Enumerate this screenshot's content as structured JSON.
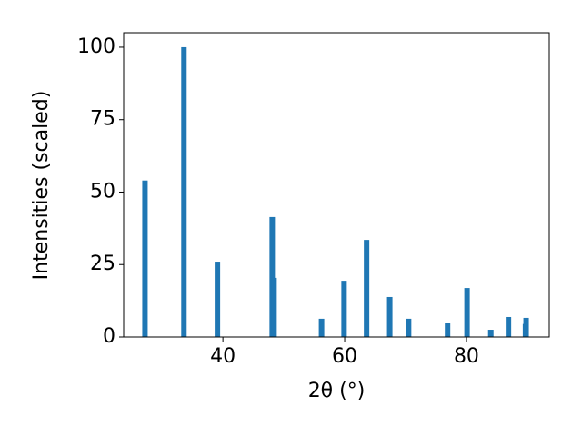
{
  "chart_data": {
    "type": "bar",
    "xlabel": "2θ (°)",
    "ylabel": "Intensities (scaled)",
    "x": [
      27.2,
      33.6,
      39.1,
      48.1,
      48.4,
      56.2,
      59.9,
      63.6,
      67.4,
      70.5,
      76.9,
      80.1,
      84.0,
      86.9,
      89.7,
      89.8
    ],
    "values": [
      54,
      100,
      26,
      41.4,
      20.4,
      6.3,
      19.4,
      33.5,
      13.8,
      6.3,
      4.7,
      16.9,
      2.5,
      6.9,
      4.5,
      6.6
    ],
    "color": "#1f77b4",
    "xlim": [
      23.7,
      93.6
    ],
    "xticks": [
      40,
      60,
      80
    ],
    "ylim": [
      0,
      105
    ],
    "yticks": [
      0,
      25,
      50,
      75,
      100
    ]
  }
}
